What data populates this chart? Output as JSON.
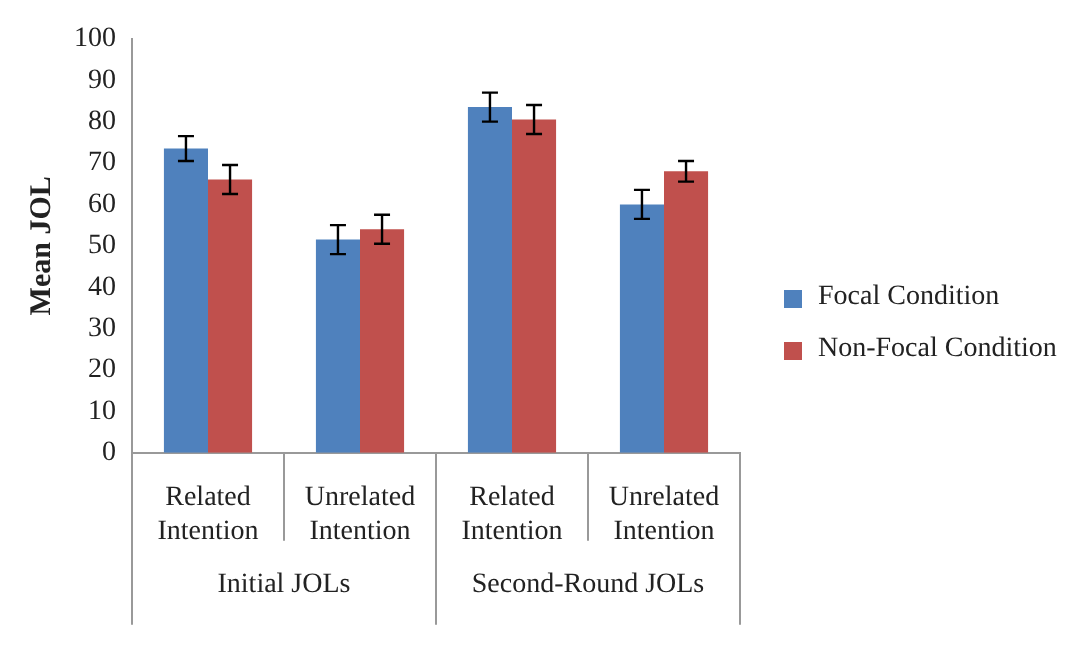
{
  "chart_data": {
    "type": "bar",
    "ylabel": "Mean JOL",
    "categories": [
      "Related Intention",
      "Unrelated Intention",
      "Related Intention",
      "Unrelated Intention"
    ],
    "series": [
      {
        "name": "Focal Condition",
        "color": "#4f81bd",
        "values": [
          73.5,
          51.5,
          83.5,
          60
        ],
        "errors": [
          3,
          3.5,
          3.5,
          3.5
        ]
      },
      {
        "name": "Non-Focal Condition",
        "color": "#c0504d",
        "values": [
          66,
          54,
          80.5,
          68
        ],
        "errors": [
          3.5,
          3.5,
          3.5,
          2.5
        ]
      }
    ],
    "ylim": [
      0,
      100
    ],
    "yticks": [
      0,
      10,
      20,
      30,
      40,
      50,
      60,
      70,
      80,
      90,
      100
    ],
    "legend": "right",
    "annotations": [
      "Initial JOLs",
      "Second-Round JOLs"
    ]
  }
}
